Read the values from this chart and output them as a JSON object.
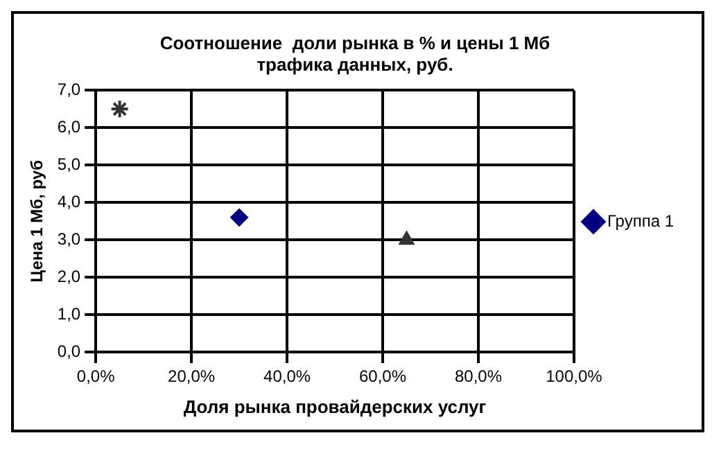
{
  "chart_data": {
    "type": "scatter",
    "title": "Соотношение  доли рынка в % и цены 1 Мб трафика данных, руб.",
    "xlabel": "Доля рынка провайдерских услуг",
    "ylabel": "Цена 1 Мб, руб",
    "series": [
      {
        "name": "Группа 1",
        "color": "#000080",
        "marker": "diamond",
        "x": [
          0.3
        ],
        "values": [
          3.6
        ]
      },
      {
        "color": "#333333",
        "marker": "triangle",
        "x": [
          0.65
        ],
        "values": [
          3.0
        ]
      },
      {
        "color": "#333333",
        "marker": "cross",
        "x": [
          0.05
        ],
        "values": [
          6.5
        ]
      }
    ],
    "xlim": [
      0,
      1
    ],
    "xticks": [
      {
        "value": 0,
        "label": "0,0%"
      },
      {
        "value": 0.2,
        "label": "20,0%"
      },
      {
        "value": 0.4,
        "label": "40,0%"
      },
      {
        "value": 0.6,
        "label": "60,0%"
      },
      {
        "value": 0.8,
        "label": "80,0%"
      },
      {
        "value": 1,
        "label": "100,0%"
      }
    ],
    "ylim": [
      0,
      7
    ],
    "yticks": [
      {
        "value": 0,
        "label": "0,0"
      },
      {
        "value": 1,
        "label": "1,0"
      },
      {
        "value": 2,
        "label": "2,0"
      },
      {
        "value": 3,
        "label": "3,0"
      },
      {
        "value": 4,
        "label": "4,0"
      },
      {
        "value": 5,
        "label": "5,0"
      },
      {
        "value": 6,
        "label": "6,0"
      },
      {
        "value": 7,
        "label": "7,0"
      }
    ],
    "grid": true,
    "legend": "right"
  }
}
